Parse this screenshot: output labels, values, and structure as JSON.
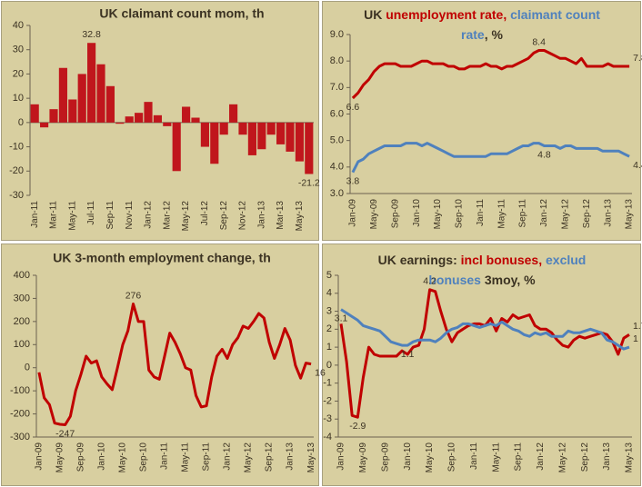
{
  "chart_data": [
    {
      "type": "bar",
      "title": "UK claimant count mom, th",
      "color": "#c0161c",
      "label_color": "#c0161c",
      "categories": [
        "Jan-11",
        null,
        "Mar-11",
        null,
        "May-11",
        null,
        "Jul-11",
        null,
        "Sep-11",
        null,
        "Nov-11",
        null,
        "Jan-12",
        null,
        "Mar-12",
        null,
        "May-12",
        null,
        "Jul-12",
        null,
        "Sep-12",
        null,
        "Nov-12",
        null,
        "Jan-13",
        null,
        "Mar-13",
        null,
        "May-13",
        null
      ],
      "values": [
        7.5,
        -2,
        5.5,
        22.5,
        9.5,
        20,
        32.8,
        24,
        15,
        -0.5,
        2.5,
        4,
        8.5,
        3,
        -1.5,
        -20,
        6.5,
        2,
        -10,
        -17,
        -5,
        7.5,
        -5,
        -13.5,
        -11,
        -5,
        -9,
        -12,
        -16,
        -21.2
      ],
      "value_labels": [
        null,
        null,
        null,
        null,
        null,
        null,
        "32.8",
        null,
        null,
        null,
        null,
        null,
        null,
        null,
        null,
        null,
        null,
        null,
        null,
        null,
        null,
        null,
        null,
        null,
        null,
        null,
        null,
        null,
        null,
        "-21.2"
      ],
      "ylim": [
        -30,
        40
      ],
      "yticks": [
        -30,
        -20,
        -10,
        0,
        10,
        20,
        30,
        40
      ]
    },
    {
      "type": "line",
      "title": [
        [
          "UK ",
          "unemployment rate, ",
          "claimant count"
        ],
        [
          "rate",
          ", %"
        ]
      ],
      "title_colors": [
        [
          "#3b3222",
          "#c00000",
          "#4f81bd"
        ],
        [
          "#4f81bd",
          "#3b3222"
        ]
      ],
      "categories": [
        "Jan-09",
        null,
        null,
        null,
        "May-09",
        null,
        null,
        null,
        "Sep-09",
        null,
        null,
        null,
        "Jan-10",
        null,
        null,
        null,
        "May-10",
        null,
        null,
        null,
        "Sep-10",
        null,
        null,
        null,
        "Jan-11",
        null,
        null,
        null,
        "May-11",
        null,
        null,
        null,
        "Sep-11",
        null,
        null,
        null,
        "Jan-12",
        null,
        null,
        null,
        "May-12",
        null,
        null,
        null,
        "Sep-12",
        null,
        null,
        null,
        "Jan-13",
        null,
        null,
        null,
        "May-13"
      ],
      "series": [
        {
          "name": "unemployment rate",
          "color": "#c00000",
          "values": [
            6.6,
            6.8,
            7.1,
            7.3,
            7.6,
            7.8,
            7.9,
            7.9,
            7.9,
            7.8,
            7.8,
            7.8,
            7.9,
            8.0,
            8.0,
            7.9,
            7.9,
            7.9,
            7.8,
            7.8,
            7.7,
            7.7,
            7.8,
            7.8,
            7.8,
            7.9,
            7.8,
            7.8,
            7.7,
            7.8,
            7.8,
            7.9,
            8.0,
            8.1,
            8.3,
            8.4,
            8.4,
            8.3,
            8.2,
            8.1,
            8.1,
            8.0,
            7.9,
            8.1,
            7.8,
            7.8,
            7.8,
            7.8,
            7.9,
            7.8,
            7.8,
            7.8,
            7.8
          ],
          "value_labels": [
            "6.6",
            null,
            null,
            null,
            null,
            null,
            null,
            null,
            null,
            null,
            null,
            null,
            null,
            null,
            null,
            null,
            null,
            null,
            null,
            null,
            null,
            null,
            null,
            null,
            null,
            null,
            null,
            null,
            null,
            null,
            null,
            null,
            null,
            null,
            null,
            "8.4",
            null,
            null,
            null,
            null,
            null,
            null,
            null,
            null,
            null,
            null,
            null,
            null,
            null,
            null,
            null,
            null,
            "7.8"
          ]
        },
        {
          "name": "claimant count rate",
          "color": "#4f81bd",
          "values": [
            3.8,
            4.2,
            4.3,
            4.5,
            4.6,
            4.7,
            4.8,
            4.8,
            4.8,
            4.8,
            4.9,
            4.9,
            4.9,
            4.8,
            4.9,
            4.8,
            4.7,
            4.6,
            4.5,
            4.4,
            4.4,
            4.4,
            4.4,
            4.4,
            4.4,
            4.4,
            4.5,
            4.5,
            4.5,
            4.5,
            4.6,
            4.7,
            4.8,
            4.8,
            4.9,
            4.9,
            4.8,
            4.8,
            4.8,
            4.7,
            4.8,
            4.8,
            4.7,
            4.7,
            4.7,
            4.7,
            4.7,
            4.6,
            4.6,
            4.6,
            4.6,
            4.5,
            4.4
          ],
          "value_labels": [
            "3.8",
            null,
            null,
            null,
            null,
            null,
            null,
            null,
            null,
            null,
            null,
            null,
            null,
            null,
            null,
            null,
            null,
            null,
            null,
            null,
            null,
            null,
            null,
            null,
            null,
            null,
            null,
            null,
            null,
            null,
            null,
            null,
            null,
            null,
            null,
            null,
            "4.8",
            null,
            null,
            null,
            null,
            null,
            null,
            null,
            null,
            null,
            null,
            null,
            null,
            null,
            null,
            null,
            "4.4"
          ]
        }
      ],
      "ylim": [
        3,
        9
      ],
      "yticks": [
        {
          "value": 3,
          "label": "3.0"
        },
        {
          "value": 4,
          "label": "4.0"
        },
        {
          "value": 5,
          "label": "5.0"
        },
        {
          "value": 6,
          "label": "6.0"
        },
        {
          "value": 7,
          "label": "7.0"
        },
        {
          "value": 8,
          "label": "8.0"
        },
        {
          "value": 9,
          "label": "9.0"
        }
      ]
    },
    {
      "type": "line",
      "title": "UK 3-month employment change, th",
      "categories": [
        "Jan-09",
        null,
        null,
        null,
        "May-09",
        null,
        null,
        null,
        "Sep-09",
        null,
        null,
        null,
        "Jan-10",
        null,
        null,
        null,
        "May-10",
        null,
        null,
        null,
        "Sep-10",
        null,
        null,
        null,
        "Jan-11",
        null,
        null,
        null,
        "May-11",
        null,
        null,
        null,
        "Sep-11",
        null,
        null,
        null,
        "Jan-12",
        null,
        null,
        null,
        "May-12",
        null,
        null,
        null,
        "Sep-12",
        null,
        null,
        null,
        "Jan-13",
        null,
        null,
        null,
        "May-13"
      ],
      "series": [
        {
          "name": null,
          "color": "#c00000",
          "values": [
            -20,
            -130,
            -160,
            -240,
            -245,
            -247,
            -210,
            -100,
            -30,
            50,
            20,
            30,
            -40,
            -70,
            -95,
            0,
            100,
            160,
            276,
            200,
            200,
            -10,
            -40,
            -50,
            50,
            150,
            110,
            60,
            0,
            -10,
            -120,
            -170,
            -165,
            -40,
            50,
            80,
            40,
            100,
            130,
            180,
            170,
            200,
            235,
            215,
            110,
            40,
            100,
            170,
            120,
            10,
            -45,
            20,
            16
          ],
          "value_labels": [
            null,
            null,
            null,
            null,
            null,
            "-247",
            null,
            null,
            null,
            null,
            null,
            null,
            null,
            null,
            null,
            null,
            null,
            null,
            "276",
            null,
            null,
            null,
            null,
            null,
            null,
            null,
            null,
            null,
            null,
            null,
            null,
            null,
            null,
            null,
            null,
            null,
            null,
            null,
            null,
            null,
            null,
            null,
            null,
            null,
            null,
            null,
            null,
            null,
            null,
            null,
            null,
            null,
            "16"
          ]
        }
      ],
      "ylim": [
        -300,
        400
      ],
      "yticks": [
        -300,
        -200,
        -100,
        0,
        100,
        200,
        300,
        400
      ]
    },
    {
      "type": "line",
      "title": [
        [
          "UK earnings: ",
          "incl bonuses,",
          " exclud"
        ],
        [
          "bonuses",
          " 3moy, %"
        ]
      ],
      "title_colors": [
        [
          "#3b3222",
          "#c00000",
          "#4f81bd"
        ],
        [
          "#4f81bd",
          "#3b3222"
        ]
      ],
      "categories": [
        "Jan-09",
        null,
        null,
        null,
        "May-09",
        null,
        null,
        null,
        "Sep-09",
        null,
        null,
        null,
        "Jan-10",
        null,
        null,
        null,
        "May-10",
        null,
        null,
        null,
        "Sep-10",
        null,
        null,
        null,
        "Jan-11",
        null,
        null,
        null,
        "May-11",
        null,
        null,
        null,
        "Sep-11",
        null,
        null,
        null,
        "Jan-12",
        null,
        null,
        null,
        "May-12",
        null,
        null,
        null,
        "Sep-12",
        null,
        null,
        null,
        "Jan-13",
        null,
        null,
        null,
        "May-13"
      ],
      "series": [
        {
          "name": "incl bonuses",
          "color": "#c00000",
          "values": [
            2.3,
            0.2,
            -2.8,
            -2.9,
            -0.7,
            1.0,
            0.6,
            0.5,
            0.5,
            0.5,
            0.5,
            0.8,
            0.6,
            1.0,
            1.1,
            2.0,
            4.2,
            4.1,
            3.0,
            2.0,
            1.3,
            1.8,
            2.0,
            2.2,
            2.3,
            2.3,
            2.2,
            2.6,
            1.9,
            2.6,
            2.4,
            2.8,
            2.6,
            2.7,
            2.8,
            2.2,
            2.0,
            2.0,
            1.8,
            1.4,
            1.1,
            1.0,
            1.4,
            1.6,
            1.5,
            1.6,
            1.7,
            1.8,
            1.7,
            1.3,
            0.6,
            1.5,
            1.7
          ],
          "value_labels": [
            null,
            null,
            null,
            "-2.9",
            null,
            null,
            null,
            null,
            null,
            null,
            null,
            null,
            null,
            null,
            null,
            null,
            "4.2",
            null,
            null,
            null,
            null,
            null,
            null,
            null,
            null,
            null,
            null,
            null,
            null,
            null,
            null,
            null,
            null,
            null,
            null,
            null,
            null,
            null,
            null,
            null,
            null,
            null,
            null,
            null,
            null,
            null,
            null,
            null,
            null,
            null,
            null,
            null,
            "1.7"
          ]
        },
        {
          "name": "exclud bonuses",
          "color": "#4f81bd",
          "values": [
            3.1,
            2.9,
            2.7,
            2.5,
            2.2,
            2.1,
            2.0,
            1.9,
            1.6,
            1.3,
            1.2,
            1.1,
            1.1,
            1.3,
            1.4,
            1.4,
            1.4,
            1.3,
            1.5,
            1.8,
            2.0,
            2.1,
            2.3,
            2.3,
            2.2,
            2.1,
            2.2,
            2.3,
            2.2,
            2.4,
            2.2,
            2.0,
            1.9,
            1.7,
            1.6,
            1.8,
            1.7,
            1.8,
            1.6,
            1.6,
            1.6,
            1.9,
            1.8,
            1.8,
            1.9,
            2.0,
            1.9,
            1.8,
            1.4,
            1.3,
            1.1,
            0.9,
            1.0
          ],
          "value_labels": [
            "3.1",
            null,
            null,
            null,
            null,
            null,
            null,
            null,
            null,
            null,
            null,
            null,
            "1.1",
            null,
            null,
            null,
            null,
            null,
            null,
            null,
            null,
            null,
            null,
            null,
            null,
            null,
            null,
            null,
            null,
            null,
            null,
            null,
            null,
            null,
            null,
            null,
            null,
            null,
            null,
            null,
            null,
            null,
            null,
            null,
            null,
            null,
            null,
            null,
            null,
            null,
            null,
            null,
            "1"
          ]
        }
      ],
      "ylim": [
        -4,
        5
      ],
      "yticks": [
        -4,
        -3,
        -2,
        -1,
        0,
        1,
        2,
        3,
        4,
        5
      ]
    }
  ]
}
